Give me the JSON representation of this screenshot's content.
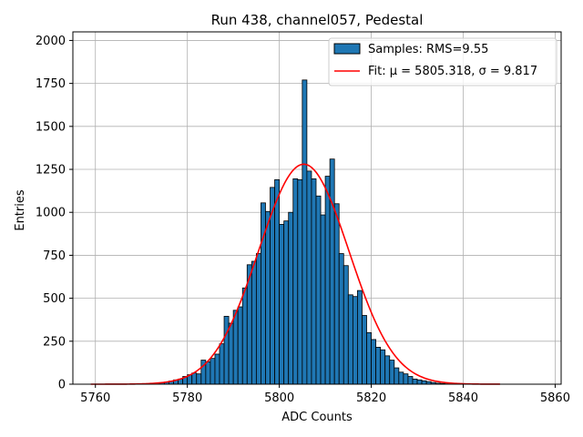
{
  "chart_data": {
    "type": "bar",
    "title": "Run 438, channel057, Pedestal",
    "xlabel": "ADC Counts",
    "ylabel": "Entries",
    "xlim": [
      5755.1,
      5861.3
    ],
    "ylim": [
      0,
      2050
    ],
    "xticks": [
      5760,
      5780,
      5800,
      5820,
      5840,
      5860
    ],
    "yticks": [
      0,
      250,
      500,
      750,
      1000,
      1250,
      1500,
      1750,
      2000
    ],
    "grid": true,
    "legend_position": "top-right",
    "series": [
      {
        "name": "Samples: RMS=9.55",
        "kind": "histogram",
        "color": "#1f77b4",
        "edgecolor": "#000000",
        "bin_width": 1,
        "bin_starts": [
          5773,
          5774,
          5775,
          5776,
          5777,
          5778,
          5779,
          5780,
          5781,
          5782,
          5783,
          5784,
          5785,
          5786,
          5787,
          5788,
          5789,
          5790,
          5791,
          5792,
          5793,
          5794,
          5795,
          5796,
          5797,
          5798,
          5799,
          5800,
          5801,
          5802,
          5803,
          5804,
          5805,
          5806,
          5807,
          5808,
          5809,
          5810,
          5811,
          5812,
          5813,
          5814,
          5815,
          5816,
          5817,
          5818,
          5819,
          5820,
          5821,
          5822,
          5823,
          5824,
          5825,
          5826,
          5827,
          5828,
          5829,
          5830,
          5831,
          5832,
          5833,
          5834,
          5835,
          5836
        ],
        "values": [
          5,
          8,
          12,
          18,
          25,
          30,
          45,
          55,
          65,
          60,
          140,
          130,
          150,
          175,
          235,
          395,
          355,
          430,
          450,
          560,
          695,
          715,
          760,
          1055,
          1005,
          1145,
          1190,
          930,
          950,
          1000,
          1195,
          1190,
          1770,
          1240,
          1195,
          1095,
          985,
          1210,
          1310,
          1050,
          760,
          690,
          520,
          510,
          545,
          400,
          300,
          260,
          215,
          200,
          165,
          140,
          95,
          70,
          60,
          45,
          30,
          25,
          20,
          15,
          10,
          6,
          4,
          2
        ]
      },
      {
        "name": "Fit: μ = 5805.318, σ = 9.817",
        "kind": "gaussian-fit",
        "color": "#ff0000",
        "mu": 5805.318,
        "sigma": 9.817,
        "amplitude": 1280,
        "x_range": [
          5759,
          5848
        ]
      }
    ]
  }
}
